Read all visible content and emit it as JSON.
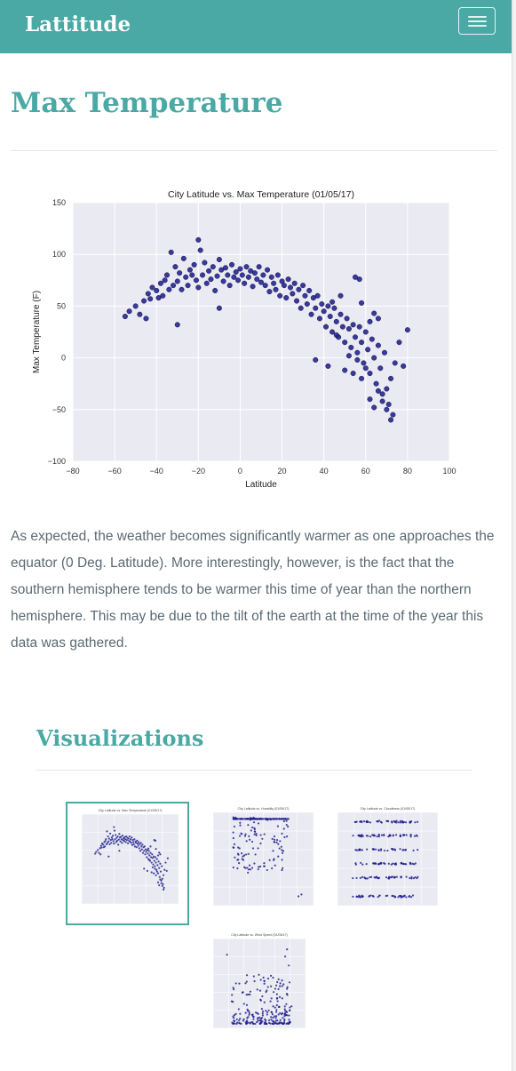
{
  "navbar": {
    "brand": "Lattitude",
    "menu_icon": "hamburger-icon",
    "color": "#4aa9a5"
  },
  "page": {
    "title": "Max Temperature",
    "description": "As expected, the weather becomes significantly warmer as one approaches the equator (0 Deg. Latitude). More interestingly, however, is the fact that the southern hemisphere tends to be warmer this time of year than the northern hemisphere. This may be due to the tilt of the earth at the time of the year this data was gathered."
  },
  "visualizations": {
    "heading": "Visualizations",
    "thumbnails": [
      {
        "title": "City Latitude vs. Max Temperature (01/05/17)",
        "active": true
      },
      {
        "title": "City Latitude vs. Humidity (01/05/17)",
        "active": false
      },
      {
        "title": "City Latitude vs. Cloudiness (01/05/17)",
        "active": false
      },
      {
        "title": "City Latitude vs. Wind Speed (01/05/17)",
        "active": false
      }
    ]
  },
  "chart_data": {
    "type": "scatter",
    "title": "City Latitude vs. Max Temperature (01/05/17)",
    "xlabel": "Latitude",
    "ylabel": "Max Temperature (F)",
    "xlim": [
      -80,
      100
    ],
    "ylim": [
      -100,
      150
    ],
    "xticks": [
      "−80",
      "−60",
      "−40",
      "−20",
      "0",
      "20",
      "40",
      "60",
      "80",
      "100"
    ],
    "yticks": [
      "150",
      "100",
      "50",
      "0",
      "−50",
      "−100"
    ],
    "grid": true,
    "point_color": "#1a1a8c",
    "points": [
      [
        -55,
        40
      ],
      [
        -53,
        45
      ],
      [
        -50,
        50
      ],
      [
        -48,
        42
      ],
      [
        -46,
        55
      ],
      [
        -45,
        38
      ],
      [
        -44,
        62
      ],
      [
        -43,
        57
      ],
      [
        -42,
        68
      ],
      [
        -40,
        65
      ],
      [
        -39,
        58
      ],
      [
        -38,
        72
      ],
      [
        -37,
        60
      ],
      [
        -36,
        75
      ],
      [
        -35,
        80
      ],
      [
        -34,
        66
      ],
      [
        -33,
        102
      ],
      [
        -32,
        70
      ],
      [
        -31,
        88
      ],
      [
        -30,
        74
      ],
      [
        -30,
        32
      ],
      [
        -29,
        82
      ],
      [
        -28,
        66
      ],
      [
        -27,
        96
      ],
      [
        -26,
        78
      ],
      [
        -25,
        70
      ],
      [
        -24,
        85
      ],
      [
        -23,
        80
      ],
      [
        -22,
        90
      ],
      [
        -21,
        75
      ],
      [
        -20,
        114
      ],
      [
        -20,
        68
      ],
      [
        -19,
        104
      ],
      [
        -18,
        80
      ],
      [
        -17,
        92
      ],
      [
        -16,
        72
      ],
      [
        -15,
        84
      ],
      [
        -14,
        76
      ],
      [
        -13,
        88
      ],
      [
        -12,
        65
      ],
      [
        -11,
        79
      ],
      [
        -10,
        95
      ],
      [
        -10,
        48
      ],
      [
        -9,
        85
      ],
      [
        -8,
        74
      ],
      [
        -7,
        87
      ],
      [
        -6,
        80
      ],
      [
        -5,
        70
      ],
      [
        -4,
        90
      ],
      [
        -3,
        78
      ],
      [
        -2,
        83
      ],
      [
        -1,
        75
      ],
      [
        0,
        86
      ],
      [
        1,
        80
      ],
      [
        2,
        72
      ],
      [
        3,
        88
      ],
      [
        4,
        78
      ],
      [
        5,
        84
      ],
      [
        6,
        69
      ],
      [
        7,
        82
      ],
      [
        8,
        76
      ],
      [
        9,
        88
      ],
      [
        10,
        73
      ],
      [
        11,
        80
      ],
      [
        12,
        70
      ],
      [
        13,
        85
      ],
      [
        14,
        64
      ],
      [
        15,
        78
      ],
      [
        16,
        72
      ],
      [
        17,
        66
      ],
      [
        18,
        80
      ],
      [
        19,
        60
      ],
      [
        20,
        74
      ],
      [
        21,
        70
      ],
      [
        22,
        58
      ],
      [
        23,
        76
      ],
      [
        24,
        68
      ],
      [
        25,
        62
      ],
      [
        26,
        72
      ],
      [
        27,
        55
      ],
      [
        28,
        66
      ],
      [
        29,
        48
      ],
      [
        30,
        70
      ],
      [
        31,
        60
      ],
      [
        32,
        52
      ],
      [
        33,
        65
      ],
      [
        34,
        42
      ],
      [
        35,
        58
      ],
      [
        36,
        48
      ],
      [
        37,
        60
      ],
      [
        38,
        38
      ],
      [
        39,
        52
      ],
      [
        40,
        45
      ],
      [
        41,
        30
      ],
      [
        42,
        50
      ],
      [
        43,
        40
      ],
      [
        44,
        25
      ],
      [
        45,
        48
      ],
      [
        46,
        35
      ],
      [
        47,
        20
      ],
      [
        48,
        42
      ],
      [
        49,
        30
      ],
      [
        50,
        15
      ],
      [
        51,
        38
      ],
      [
        52,
        28
      ],
      [
        53,
        10
      ],
      [
        54,
        32
      ],
      [
        55,
        20
      ],
      [
        56,
        5
      ],
      [
        57,
        30
      ],
      [
        58,
        15
      ],
      [
        59,
        -5
      ],
      [
        60,
        25
      ],
      [
        61,
        8
      ],
      [
        62,
        -15
      ],
      [
        63,
        18
      ],
      [
        64,
        0
      ],
      [
        65,
        -25
      ],
      [
        66,
        12
      ],
      [
        67,
        -10
      ],
      [
        68,
        -35
      ],
      [
        69,
        5
      ],
      [
        70,
        -30
      ],
      [
        71,
        -45
      ],
      [
        72,
        -20
      ],
      [
        73,
        -55
      ],
      [
        74,
        -5
      ],
      [
        76,
        15
      ],
      [
        78,
        -8
      ],
      [
        80,
        27
      ],
      [
        55,
        78
      ],
      [
        57,
        76
      ],
      [
        48,
        60
      ],
      [
        44,
        54
      ],
      [
        36,
        -2
      ],
      [
        42,
        -8
      ],
      [
        50,
        -12
      ],
      [
        58,
        -20
      ],
      [
        62,
        -40
      ],
      [
        64,
        -48
      ],
      [
        68,
        -42
      ],
      [
        70,
        -50
      ],
      [
        72,
        -60
      ],
      [
        46,
        22
      ],
      [
        52,
        2
      ],
      [
        56,
        -2
      ],
      [
        60,
        -10
      ],
      [
        66,
        -32
      ],
      [
        54,
        -15
      ],
      [
        62,
        35
      ],
      [
        64,
        43
      ],
      [
        58,
        53
      ],
      [
        66,
        38
      ]
    ]
  }
}
